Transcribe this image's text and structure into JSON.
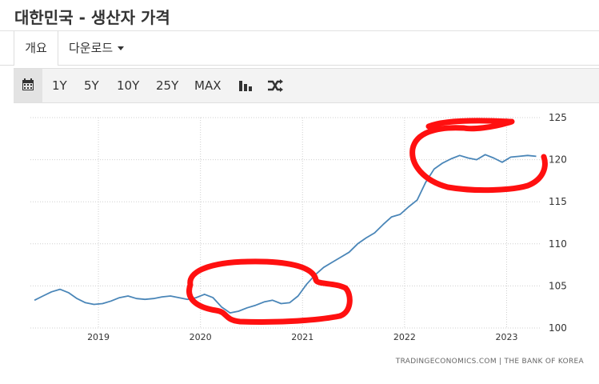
{
  "page": {
    "title": "대한민국 - 생산자 가격"
  },
  "tabs": [
    {
      "label": "개요",
      "active": true
    },
    {
      "label": "다운로드",
      "dropdown": true
    }
  ],
  "toolbar": {
    "ranges": [
      "1Y",
      "5Y",
      "10Y",
      "25Y",
      "MAX"
    ],
    "icons": [
      "calendar-icon",
      "bar-chart-icon",
      "shuffle-icon"
    ]
  },
  "source": "TRADINGECONOMICS.COM  |  THE BANK OF KOREA",
  "chart_data": {
    "type": "line",
    "title": "",
    "xlabel": "",
    "ylabel": "",
    "x_ticks": [
      "2019",
      "2020",
      "2021",
      "2022",
      "2023"
    ],
    "y_ticks": [
      100,
      105,
      110,
      115,
      120,
      125
    ],
    "ylim": [
      100,
      125
    ],
    "xlim": [
      "2018-05",
      "2023-05"
    ],
    "grid": true,
    "line_color": "#4a86b8",
    "series": [
      {
        "name": "",
        "x": [
          "2018-05",
          "2018-06",
          "2018-07",
          "2018-08",
          "2018-09",
          "2018-10",
          "2018-11",
          "2018-12",
          "2019-01",
          "2019-02",
          "2019-03",
          "2019-04",
          "2019-05",
          "2019-06",
          "2019-07",
          "2019-08",
          "2019-09",
          "2019-10",
          "2019-11",
          "2019-12",
          "2020-01",
          "2020-02",
          "2020-03",
          "2020-04",
          "2020-05",
          "2020-06",
          "2020-07",
          "2020-08",
          "2020-09",
          "2020-10",
          "2020-11",
          "2020-12",
          "2021-01",
          "2021-02",
          "2021-03",
          "2021-04",
          "2021-05",
          "2021-06",
          "2021-07",
          "2021-08",
          "2021-09",
          "2021-10",
          "2021-11",
          "2021-12",
          "2022-01",
          "2022-02",
          "2022-03",
          "2022-04",
          "2022-05",
          "2022-06",
          "2022-07",
          "2022-08",
          "2022-09",
          "2022-10",
          "2022-11",
          "2022-12",
          "2023-01",
          "2023-02",
          "2023-03",
          "2023-04"
        ],
        "values": [
          103.3,
          103.8,
          104.3,
          104.6,
          104.2,
          103.5,
          103.0,
          102.8,
          102.9,
          103.2,
          103.6,
          103.8,
          103.5,
          103.4,
          103.5,
          103.7,
          103.8,
          103.6,
          103.4,
          103.6,
          104.0,
          103.6,
          102.5,
          101.8,
          102.0,
          102.4,
          102.7,
          103.1,
          103.3,
          102.9,
          103.0,
          103.8,
          105.2,
          106.3,
          107.2,
          107.8,
          108.4,
          109.0,
          110.0,
          110.7,
          111.3,
          112.3,
          113.2,
          113.5,
          114.4,
          115.2,
          117.3,
          118.9,
          119.6,
          120.1,
          120.5,
          120.2,
          120.0,
          120.6,
          120.2,
          119.7,
          120.3,
          120.4,
          120.5,
          120.4
        ]
      }
    ],
    "annotations": "red freehand circles drawn around 2020 dip and 2022-2023 plateau"
  }
}
